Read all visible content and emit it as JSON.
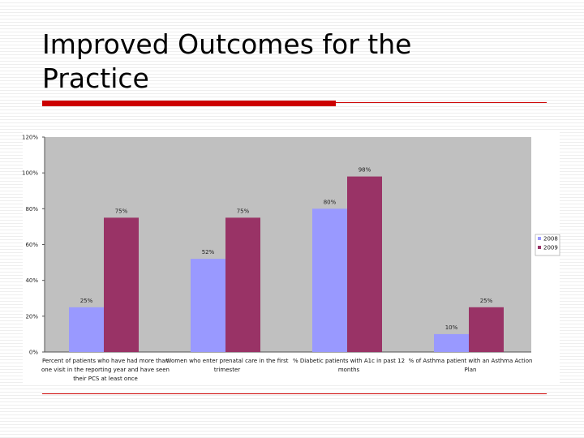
{
  "slide": {
    "title_line1": "Improved Outcomes for the",
    "title_line2": "Practice"
  },
  "colors": {
    "plot_bg": "#c0c0c0",
    "series_2008": "#9999ff",
    "series_2009": "#993366",
    "accent": "#cc0000"
  },
  "chart_data": {
    "type": "bar",
    "title": "",
    "xlabel": "",
    "ylabel": "",
    "ylim": [
      0,
      120
    ],
    "yticks": [
      0,
      20,
      40,
      60,
      80,
      100,
      120
    ],
    "ytick_labels": [
      "0%",
      "20%",
      "40%",
      "60%",
      "80%",
      "100%",
      "120%"
    ],
    "grid": false,
    "legend_position": "right",
    "categories": [
      [
        "Percent of patients who have had more than",
        "one visit in the reporting year and have seen",
        "their PCS at least once"
      ],
      [
        "Women who enter prenatal care in the first",
        "trimester"
      ],
      [
        "% Diabetic patients with A1c in past 12",
        "months"
      ],
      [
        "% of Asthma patient with an Asthma Action",
        "Plan"
      ]
    ],
    "series": [
      {
        "name": "2008",
        "values": [
          25,
          52,
          80,
          10
        ],
        "labels": [
          "25%",
          "52%",
          "80%",
          "10%"
        ]
      },
      {
        "name": "2009",
        "values": [
          75,
          75,
          98,
          25
        ],
        "labels": [
          "75%",
          "75%",
          "98%",
          "25%"
        ]
      }
    ]
  }
}
